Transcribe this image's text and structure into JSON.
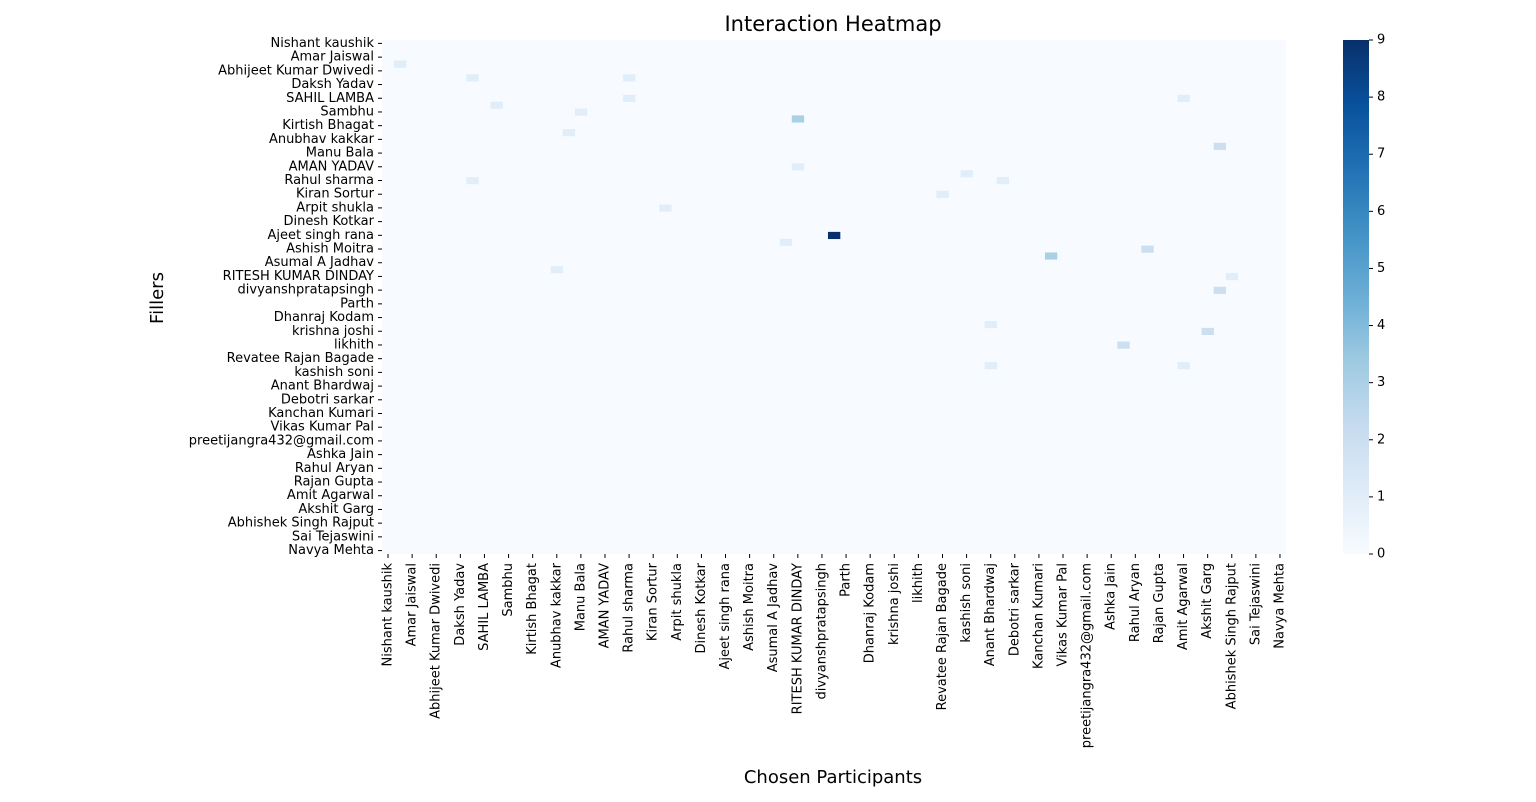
{
  "chart_data": {
    "type": "heatmap",
    "title": "Interaction Heatmap",
    "xlabel": "Chosen Participants",
    "ylabel": "Fillers",
    "colormap": "Blues",
    "color_low": "#f7fbff",
    "color_high": "#08306b",
    "value_range": [
      0,
      9
    ],
    "colorbar_ticks": [
      "0",
      "1",
      "2",
      "3",
      "4",
      "5",
      "6",
      "7",
      "8",
      "9"
    ],
    "grid": false,
    "legend": "colorbar-right",
    "row_tick_labels": [
      "Nishant kaushik ",
      "Amar Jaiswal ",
      "Abhijeet Kumar Dwivedi",
      "Daksh Yadav ",
      "SAHIL LAMBA",
      "Sambhu",
      "Kirtish Bhagat",
      "Anubhav kakkar",
      "Manu Bala",
      "AMAN   YADAV",
      "Rahul sharma",
      "Kiran Sortur",
      "Arpit shukla",
      "Dinesh Kotkar",
      "Ajeet singh rana",
      "Ashish Moitra",
      "Asumal A Jadhav",
      "RITESH KUMAR DINDAY ",
      "divyanshpratapsingh",
      "Parth ",
      "Dhanraj Kodam",
      "krishna joshi",
      "likhith",
      "Revatee Rajan Bagade ",
      "kashish soni",
      "Anant Bhardwaj",
      "Debotri sarkar",
      "Kanchan Kumari",
      "Vikas Kumar Pal",
      "preetijangra432@gmail.com",
      "Ashka Jain",
      "Rahul Aryan",
      "Rajan Gupta",
      "Amit Agarwal",
      "Akshit Garg",
      "Abhishek Singh Rajput",
      "Sai Tejaswini",
      "Navya Mehta"
    ],
    "col_tick_labels": [
      "Nishant kaushik",
      "Amar Jaiswal",
      "Abhijeet Kumar Dwivedi",
      "Daksh Yadav",
      "SAHIL LAMBA",
      "Sambhu",
      "Kirtish Bhagat",
      "Anubhav kakkar",
      "Manu Bala",
      "AMAN   YADAV",
      "Rahul sharma",
      "Kiran Sortur",
      "Arpit shukla",
      "Dinesh Kotkar",
      "Ajeet singh rana",
      "Ashish Moitra",
      "Asumal A Jadhav",
      "RITESH KUMAR DINDAY",
      "divyanshpratapsingh",
      "Parth",
      "Dhanraj Kodam",
      "krishna joshi",
      "likhith",
      "Revatee Rajan Bagade",
      "kashish soni",
      "Anant Bhardwaj",
      "Debotri sarkar",
      "Kanchan Kumari",
      "Vikas Kumar Pal",
      "preetijangra432@gmail.com",
      "Ashka Jain",
      "Rahul Aryan",
      "Rajan Gupta",
      "Amit Agarwal",
      "Akshit Garg",
      "Abhishek Singh Rajput",
      "Sai Tejaswini",
      "Navya Mehta"
    ],
    "rows_per_label": 2,
    "cols_per_label": 2,
    "n_rows": 75,
    "n_cols": 75,
    "cells": [
      {
        "r": 28,
        "c": 37,
        "v": 9
      },
      {
        "r": 11,
        "c": 34,
        "v": 3
      },
      {
        "r": 31,
        "c": 55,
        "v": 3
      },
      {
        "r": 30,
        "c": 63,
        "v": 2
      },
      {
        "r": 15,
        "c": 69,
        "v": 2
      },
      {
        "r": 36,
        "c": 69,
        "v": 2
      },
      {
        "r": 42,
        "c": 68,
        "v": 2
      },
      {
        "r": 44,
        "c": 61,
        "v": 2
      },
      {
        "r": 47,
        "c": 66,
        "v": 1
      },
      {
        "r": 34,
        "c": 70,
        "v": 1
      },
      {
        "r": 10,
        "c": 16,
        "v": 1
      },
      {
        "r": 5,
        "c": 7,
        "v": 1
      },
      {
        "r": 20,
        "c": 7,
        "v": 1
      },
      {
        "r": 24,
        "c": 23,
        "v": 1
      },
      {
        "r": 8,
        "c": 20,
        "v": 1
      },
      {
        "r": 8,
        "c": 66,
        "v": 1
      },
      {
        "r": 5,
        "c": 20,
        "v": 1
      },
      {
        "r": 18,
        "c": 34,
        "v": 1
      },
      {
        "r": 29,
        "c": 33,
        "v": 1
      },
      {
        "r": 33,
        "c": 14,
        "v": 1
      },
      {
        "r": 9,
        "c": 9,
        "v": 1
      },
      {
        "r": 3,
        "c": 1,
        "v": 1
      },
      {
        "r": 20,
        "c": 51,
        "v": 1
      },
      {
        "r": 41,
        "c": 50,
        "v": 1
      },
      {
        "r": 47,
        "c": 50,
        "v": 1
      },
      {
        "r": 13,
        "c": 15,
        "v": 1
      },
      {
        "r": 19,
        "c": 48,
        "v": 1
      },
      {
        "r": 22,
        "c": 46,
        "v": 1
      }
    ]
  }
}
